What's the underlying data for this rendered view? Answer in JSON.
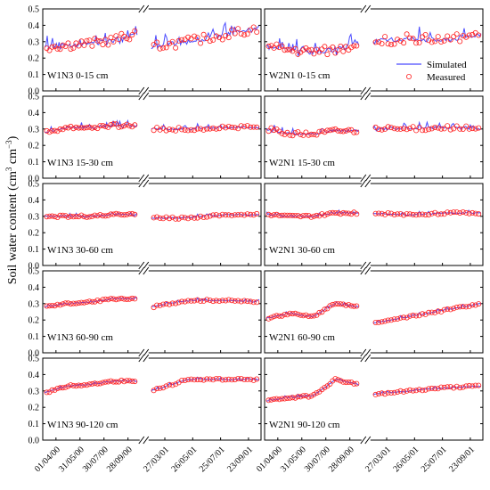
{
  "chart_data": {
    "type": "line",
    "ylabel": "Soil water content (cm",
    "ylabel_sup_unit": "3",
    "ylabel_mid": " cm",
    "ylabel_sup_exp": "−3",
    "ylabel_close": ")",
    "ylim": [
      0,
      0.5
    ],
    "yticks": [
      "0.0",
      "0.1",
      "0.2",
      "0.3",
      "0.4",
      "0.5"
    ],
    "xticks_year1": [
      "01/04/00",
      "31/05/00",
      "30/07/00",
      "28/09/00"
    ],
    "xticks_year2": [
      "27/03/01",
      "26/05/01",
      "25/07/01",
      "23/09/01"
    ],
    "legend": [
      {
        "label": "Simulated",
        "style": "line",
        "color": "#4a4aff"
      },
      {
        "label": "Measured",
        "style": "circle",
        "color": "#ff2020"
      }
    ],
    "colors": {
      "simulated": "#4a4aff",
      "measured": "#ff2020"
    },
    "panels": [
      {
        "label": "W1N3 0-15 cm",
        "base": [
          0.27,
          0.28,
          0.29,
          0.31,
          0.35,
          0.27,
          0.3,
          0.34,
          0.38
        ],
        "noise": 0.05
      },
      {
        "label": "W2N1 0-15 cm",
        "base": [
          0.27,
          0.25,
          0.24,
          0.25,
          0.29,
          0.3,
          0.32,
          0.31,
          0.35
        ],
        "noise": 0.05
      },
      {
        "label": "W1N3 15-30 cm",
        "base": [
          0.28,
          0.31,
          0.31,
          0.32,
          0.32,
          0.3,
          0.3,
          0.31,
          0.31
        ],
        "noise": 0.02
      },
      {
        "label": "W2N1 15-30 cm",
        "base": [
          0.3,
          0.27,
          0.27,
          0.29,
          0.29,
          0.3,
          0.3,
          0.31,
          0.3
        ],
        "noise": 0.025
      },
      {
        "label": "W1N3 30-60 cm",
        "base": [
          0.3,
          0.3,
          0.3,
          0.31,
          0.31,
          0.29,
          0.29,
          0.31,
          0.31
        ],
        "noise": 0.012
      },
      {
        "label": "W2N1 30-60 cm",
        "base": [
          0.31,
          0.3,
          0.3,
          0.32,
          0.32,
          0.32,
          0.31,
          0.32,
          0.32
        ],
        "noise": 0.012
      },
      {
        "label": "W1N3 60-90 cm",
        "base": [
          0.28,
          0.3,
          0.31,
          0.33,
          0.33,
          0.28,
          0.32,
          0.32,
          0.31
        ],
        "noise": 0.01
      },
      {
        "label": "W2N1 60-90 cm",
        "base": [
          0.21,
          0.24,
          0.22,
          0.3,
          0.28,
          0.18,
          0.22,
          0.26,
          0.3
        ],
        "noise": 0.01
      },
      {
        "label": "W1N3 90-120 cm",
        "base": [
          0.29,
          0.33,
          0.34,
          0.36,
          0.36,
          0.3,
          0.37,
          0.37,
          0.37
        ],
        "noise": 0.01
      },
      {
        "label": "W2N1 90-120 cm",
        "base": [
          0.24,
          0.26,
          0.27,
          0.37,
          0.34,
          0.28,
          0.3,
          0.32,
          0.33
        ],
        "noise": 0.01
      }
    ]
  }
}
